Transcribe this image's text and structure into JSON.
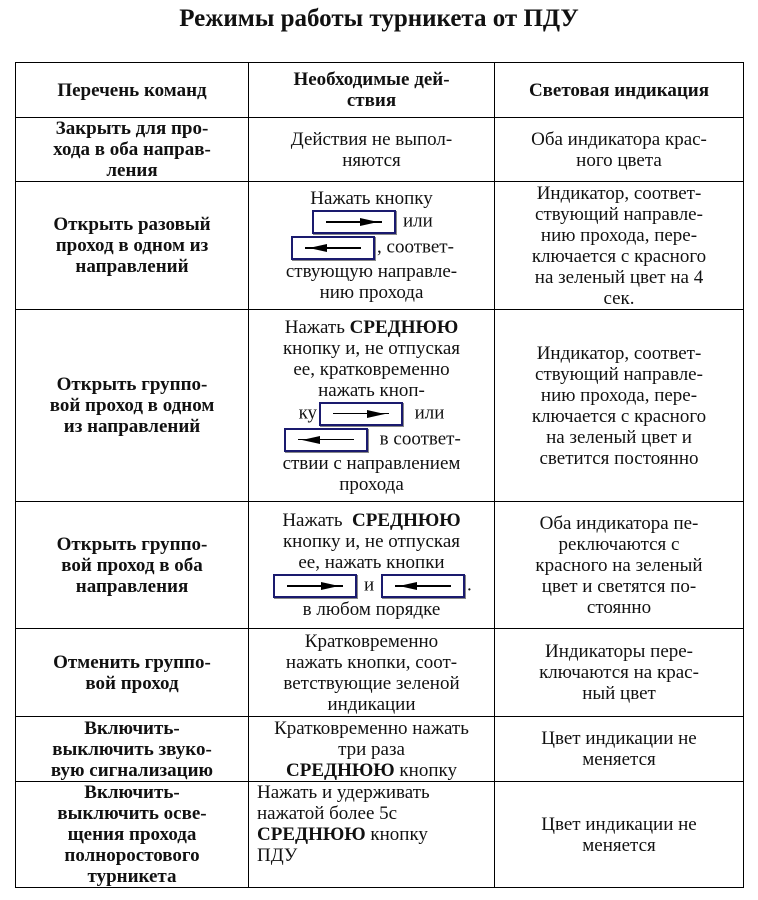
{
  "title": "Режимы работы турникета от ПДУ",
  "headers": [
    "Перечень команд",
    [
      "Необходимые дей-",
      "ствия"
    ],
    "Световая индикация"
  ],
  "rows": [
    {
      "cmd": [
        "Закрыть для про-",
        "хода в оба направ-",
        "ления"
      ],
      "act": [
        "Действия не выпол-",
        "няются"
      ],
      "ind": [
        "Оба индикатора крас-",
        "ного цвета"
      ]
    },
    {
      "cmd": [
        "Открыть разовый",
        "проход в одном из",
        "направлений"
      ],
      "act": [
        "Нажать кнопку",
        "или",
        ", соответ-",
        "ствующую направле-",
        "нию прохода"
      ],
      "ind": [
        "Индикатор, соответ-",
        "ствующий направле-",
        "нию прохода, пере-",
        "ключается с красного",
        "на зеленый цвет на 4",
        "сек."
      ]
    },
    {
      "cmd": [
        "Открыть группо-",
        "вой проход в одном",
        "из направлений"
      ],
      "act": [
        "Нажать",
        "СРЕДНЮЮ",
        "кнопку  и, не отпуская",
        "ее, кратковременно",
        "нажать кноп-",
        "ку",
        "или",
        "в соответ-",
        "ствии с направлением",
        "прохода"
      ],
      "ind": [
        "Индикатор, соответ-",
        "ствующий направле-",
        "нию прохода, пере-",
        "ключается с красного",
        "на зеленый цвет и",
        "светится постоянно"
      ]
    },
    {
      "cmd": [
        "Открыть группо-",
        "вой проход в оба",
        "направления"
      ],
      "act": [
        "Нажать",
        "СРЕДНЮЮ",
        "кнопку  и, не отпуская",
        "ее, нажать кнопки",
        "и",
        ".",
        "в любом порядке"
      ],
      "ind": [
        "Оба индикатора пе-",
        "реключаются с",
        "красного на зеленый",
        "цвет и светятся по-",
        "стоянно"
      ]
    },
    {
      "cmd": [
        "Отменить группо-",
        "вой проход"
      ],
      "act": [
        "Кратковременно",
        "нажать кнопки, соот-",
        "ветствующие зеленой",
        "индикации"
      ],
      "ind": [
        "Индикаторы пере-",
        "ключаются на крас-",
        "ный цвет"
      ]
    },
    {
      "cmd": [
        "Включить-",
        "выключить звуко-",
        "вую сигнализацию"
      ],
      "act": [
        "Кратковременно нажать",
        "три раза",
        "СРЕДНЮЮ",
        "кнопку"
      ],
      "ind": [
        "Цвет индикации не",
        "меняется"
      ]
    },
    {
      "cmd": [
        "Включить-",
        "выключить осве-",
        "щения прохода",
        "полноростового",
        "турникета"
      ],
      "act": [
        "Нажать и удерживать",
        "нажатой более 5с",
        "СРЕДНЮЮ",
        "кнопку",
        "ПДУ"
      ],
      "ind": [
        "Цвет индикации не",
        "меняется"
      ]
    }
  ],
  "icons": {
    "right": "arrow-right-button-icon",
    "left": "arrow-left-button-icon"
  }
}
